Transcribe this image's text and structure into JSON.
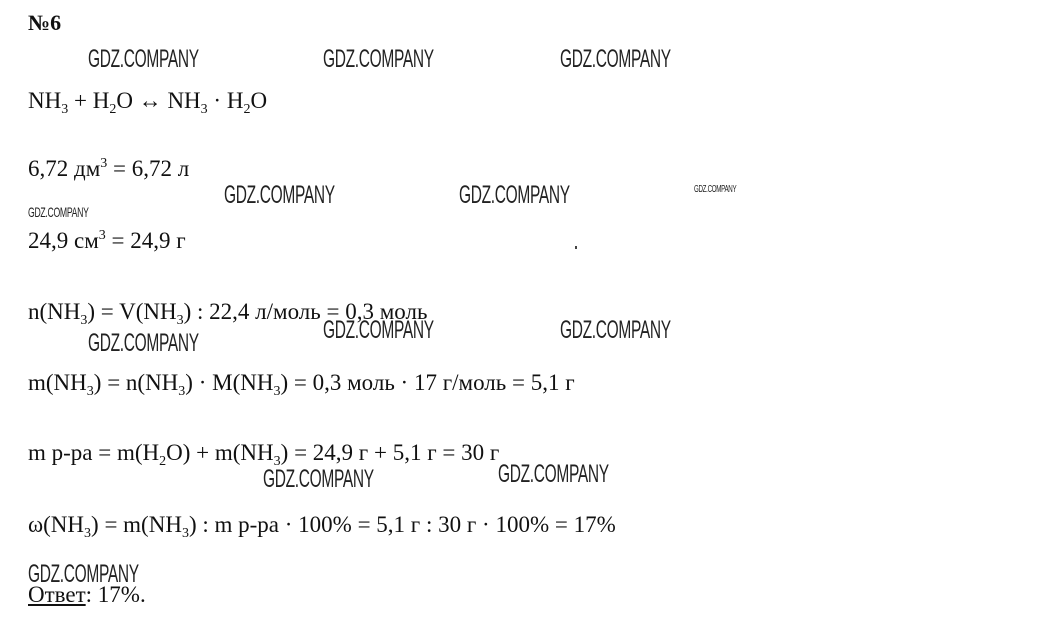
{
  "title": "№6",
  "watermark": "GDZ.COMPANY",
  "lines": [
    [
      {
        "t": "NH"
      },
      {
        "t": "3",
        "s": "sub"
      },
      {
        "t": " + H"
      },
      {
        "t": "2",
        "s": "sub"
      },
      {
        "t": "O ↔ NH"
      },
      {
        "t": "3",
        "s": "sub"
      },
      {
        "t": " · H"
      },
      {
        "t": "2",
        "s": "sub"
      },
      {
        "t": "O"
      }
    ],
    [
      {
        "t": "6,72 дм"
      },
      {
        "t": "3",
        "s": "sup"
      },
      {
        "t": " = 6,72 л"
      }
    ],
    [
      {
        "t": "24,9 см"
      },
      {
        "t": "3",
        "s": "sup"
      },
      {
        "t": " = 24,9 г"
      }
    ],
    [
      {
        "t": "n(NH"
      },
      {
        "t": "3",
        "s": "sub"
      },
      {
        "t": ") = V(NH"
      },
      {
        "t": "3",
        "s": "sub"
      },
      {
        "t": ") : 22,4 л/моль = 0,3 моль"
      }
    ],
    [
      {
        "t": "m(NH"
      },
      {
        "t": "3",
        "s": "sub"
      },
      {
        "t": ") = n(NH"
      },
      {
        "t": "3",
        "s": "sub"
      },
      {
        "t": ") · M(NH"
      },
      {
        "t": "3",
        "s": "sub"
      },
      {
        "t": ") = 0,3 моль · 17 г/моль = 5,1 г"
      }
    ],
    [
      {
        "t": "m р-ра = m(H"
      },
      {
        "t": "2",
        "s": "sub"
      },
      {
        "t": "O) + m(NH"
      },
      {
        "t": "3",
        "s": "sub"
      },
      {
        "t": ") = 24,9 г + 5,1 г = 30 г"
      }
    ],
    [
      {
        "t": "ω(NH"
      },
      {
        "t": "3",
        "s": "sub"
      },
      {
        "t": ") = m(NH"
      },
      {
        "t": "3",
        "s": "sub"
      },
      {
        "t": ") : m р-ра · 100% = 5,1 г : 30 г · 100% = 17%"
      }
    ]
  ],
  "answer": {
    "label": "Ответ",
    "value": ": 17%."
  }
}
